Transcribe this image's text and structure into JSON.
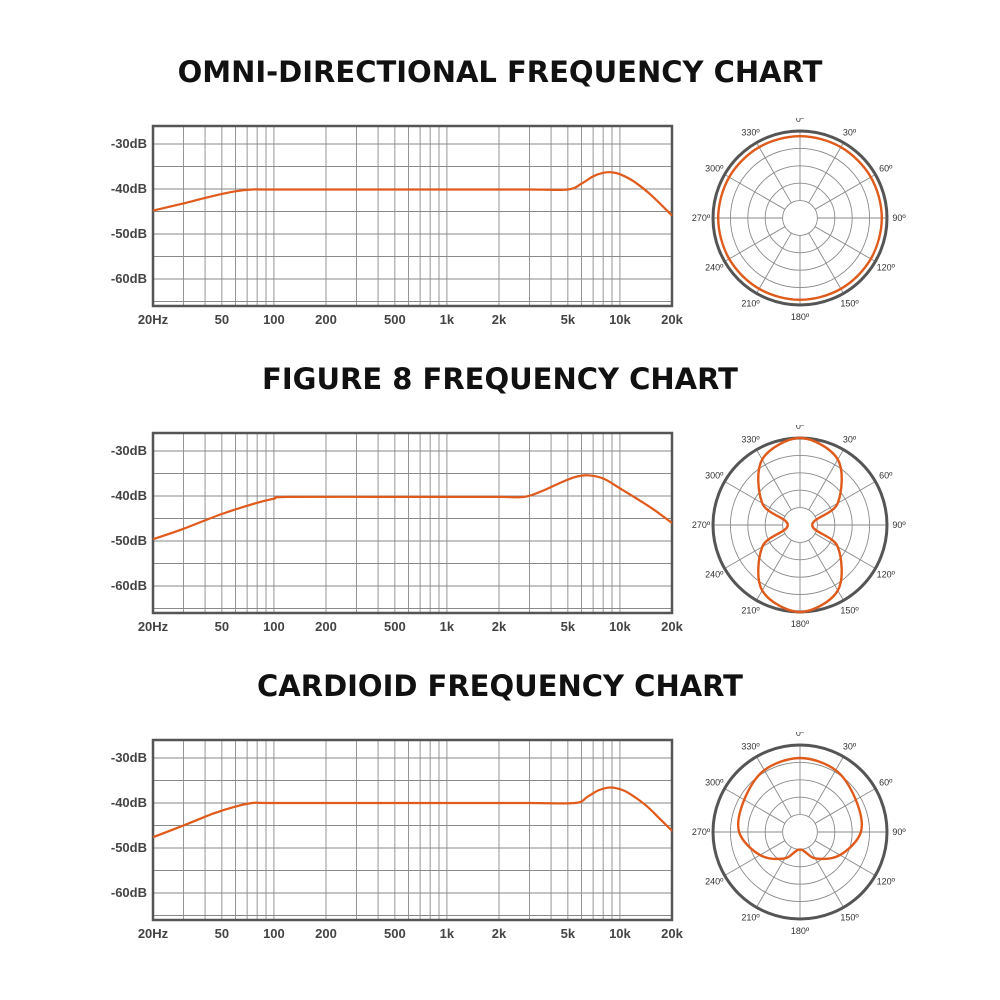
{
  "curve_color": "#E05A1B",
  "charts": [
    {
      "title": "OMNI-DIRECTIONAL FREQUENCY CHART",
      "chart_data": {
        "type": "line",
        "title": "OMNI-DIRECTIONAL FREQUENCY CHART",
        "xscale": "log",
        "xlim": [
          20,
          20000
        ],
        "ylim": [
          -66,
          -26
        ],
        "x_ticks": [
          "20Hz",
          "50",
          "100",
          "200",
          "500",
          "1k",
          "2k",
          "5k",
          "10k",
          "20k"
        ],
        "y_ticks": [
          "-30dB",
          "-40dB",
          "-50dB",
          "-60dB"
        ],
        "grid": true,
        "series": [
          {
            "x": [
              20,
              30,
              45,
              60,
              75,
              100,
              500,
              1000,
              3000,
              5000,
              6000,
              7000,
              8000,
              9000,
              10000,
              12000,
              15000,
              20000
            ],
            "y": [
              -44.8,
              -43.2,
              -41.5,
              -40.5,
              -40.1,
              -40.1,
              -40.1,
              -40.1,
              -40.1,
              -40.1,
              -38.8,
              -37.2,
              -36.4,
              -36.3,
              -36.7,
              -38.3,
              -41.2,
              -45.9
            ]
          }
        ]
      },
      "polar_data": {
        "type": "polar",
        "pattern": "omnidirectional",
        "angle_labels": [
          "0º",
          "30º",
          "60º",
          "90º",
          "120º",
          "150º",
          "180º",
          "210º",
          "240º",
          "270º",
          "300º",
          "330º"
        ],
        "angles_deg": [
          0,
          30,
          60,
          90,
          120,
          150,
          180,
          210,
          240,
          270,
          300,
          330
        ],
        "response": [
          0.94,
          0.94,
          0.94,
          0.94,
          0.94,
          0.94,
          0.94,
          0.94,
          0.94,
          0.94,
          0.94,
          0.94
        ]
      }
    },
    {
      "title": "FIGURE 8 FREQUENCY CHART",
      "chart_data": {
        "type": "line",
        "title": "FIGURE 8 FREQUENCY CHART",
        "xscale": "log",
        "xlim": [
          20,
          20000
        ],
        "ylim": [
          -66,
          -26
        ],
        "x_ticks": [
          "20Hz",
          "50",
          "100",
          "200",
          "500",
          "1k",
          "2k",
          "5k",
          "10k",
          "20k"
        ],
        "y_ticks": [
          "-30dB",
          "-40dB",
          "-50dB",
          "-60dB"
        ],
        "grid": true,
        "series": [
          {
            "x": [
              20,
              30,
              50,
              80,
              100,
              120,
              500,
              1000,
              2000,
              2800,
              3500,
              4500,
              5500,
              6500,
              8000,
              10000,
              15000,
              20000
            ],
            "y": [
              -49.6,
              -47.3,
              -44.0,
              -41.5,
              -40.6,
              -40.2,
              -40.2,
              -40.2,
              -40.2,
              -40.2,
              -39.0,
              -37.1,
              -35.8,
              -35.4,
              -36.1,
              -38.3,
              -42.5,
              -46.0
            ]
          }
        ]
      },
      "polar_data": {
        "type": "polar",
        "pattern": "figure-8",
        "angle_labels": [
          "0º",
          "30º",
          "60º",
          "90º",
          "120º",
          "150º",
          "180º",
          "210º",
          "240º",
          "270º",
          "300º",
          "330º"
        ],
        "angles_deg": [
          0,
          30,
          60,
          90,
          120,
          150,
          180,
          210,
          240,
          270,
          300,
          330
        ],
        "response": [
          1.0,
          0.87,
          0.5,
          0.14,
          0.5,
          0.87,
          1.0,
          0.87,
          0.5,
          0.14,
          0.5,
          0.87
        ]
      }
    },
    {
      "title": "CARDIOID FREQUENCY CHART",
      "chart_data": {
        "type": "line",
        "title": "CARDIOID FREQUENCY CHART",
        "xscale": "log",
        "xlim": [
          20,
          20000
        ],
        "ylim": [
          -66,
          -26
        ],
        "x_ticks": [
          "20Hz",
          "50",
          "100",
          "200",
          "500",
          "1k",
          "2k",
          "5k",
          "10k",
          "20k"
        ],
        "y_ticks": [
          "-30dB",
          "-40dB",
          "-50dB",
          "-60dB"
        ],
        "grid": true,
        "series": [
          {
            "x": [
              20,
              30,
              45,
              60,
              75,
              100,
              500,
              1000,
              3000,
              5500,
              6500,
              7500,
              8500,
              9500,
              11000,
              14000,
              17000,
              20000
            ],
            "y": [
              -47.6,
              -45.0,
              -42.3,
              -40.8,
              -40.0,
              -40.0,
              -40.0,
              -40.0,
              -40.0,
              -40.0,
              -38.6,
              -37.2,
              -36.6,
              -36.7,
              -37.6,
              -40.4,
              -43.5,
              -46.2
            ]
          }
        ]
      },
      "polar_data": {
        "type": "polar",
        "pattern": "cardioid",
        "angle_labels": [
          "0º",
          "30º",
          "60º",
          "90º",
          "120º",
          "150º",
          "180º",
          "210º",
          "240º",
          "270º",
          "300º",
          "330º"
        ],
        "angles_deg": [
          0,
          30,
          60,
          90,
          120,
          150,
          180,
          210,
          240,
          270,
          300,
          330
        ],
        "response": [
          0.85,
          0.82,
          0.74,
          0.7,
          0.53,
          0.35,
          0.2,
          0.35,
          0.53,
          0.7,
          0.74,
          0.82
        ]
      }
    }
  ]
}
